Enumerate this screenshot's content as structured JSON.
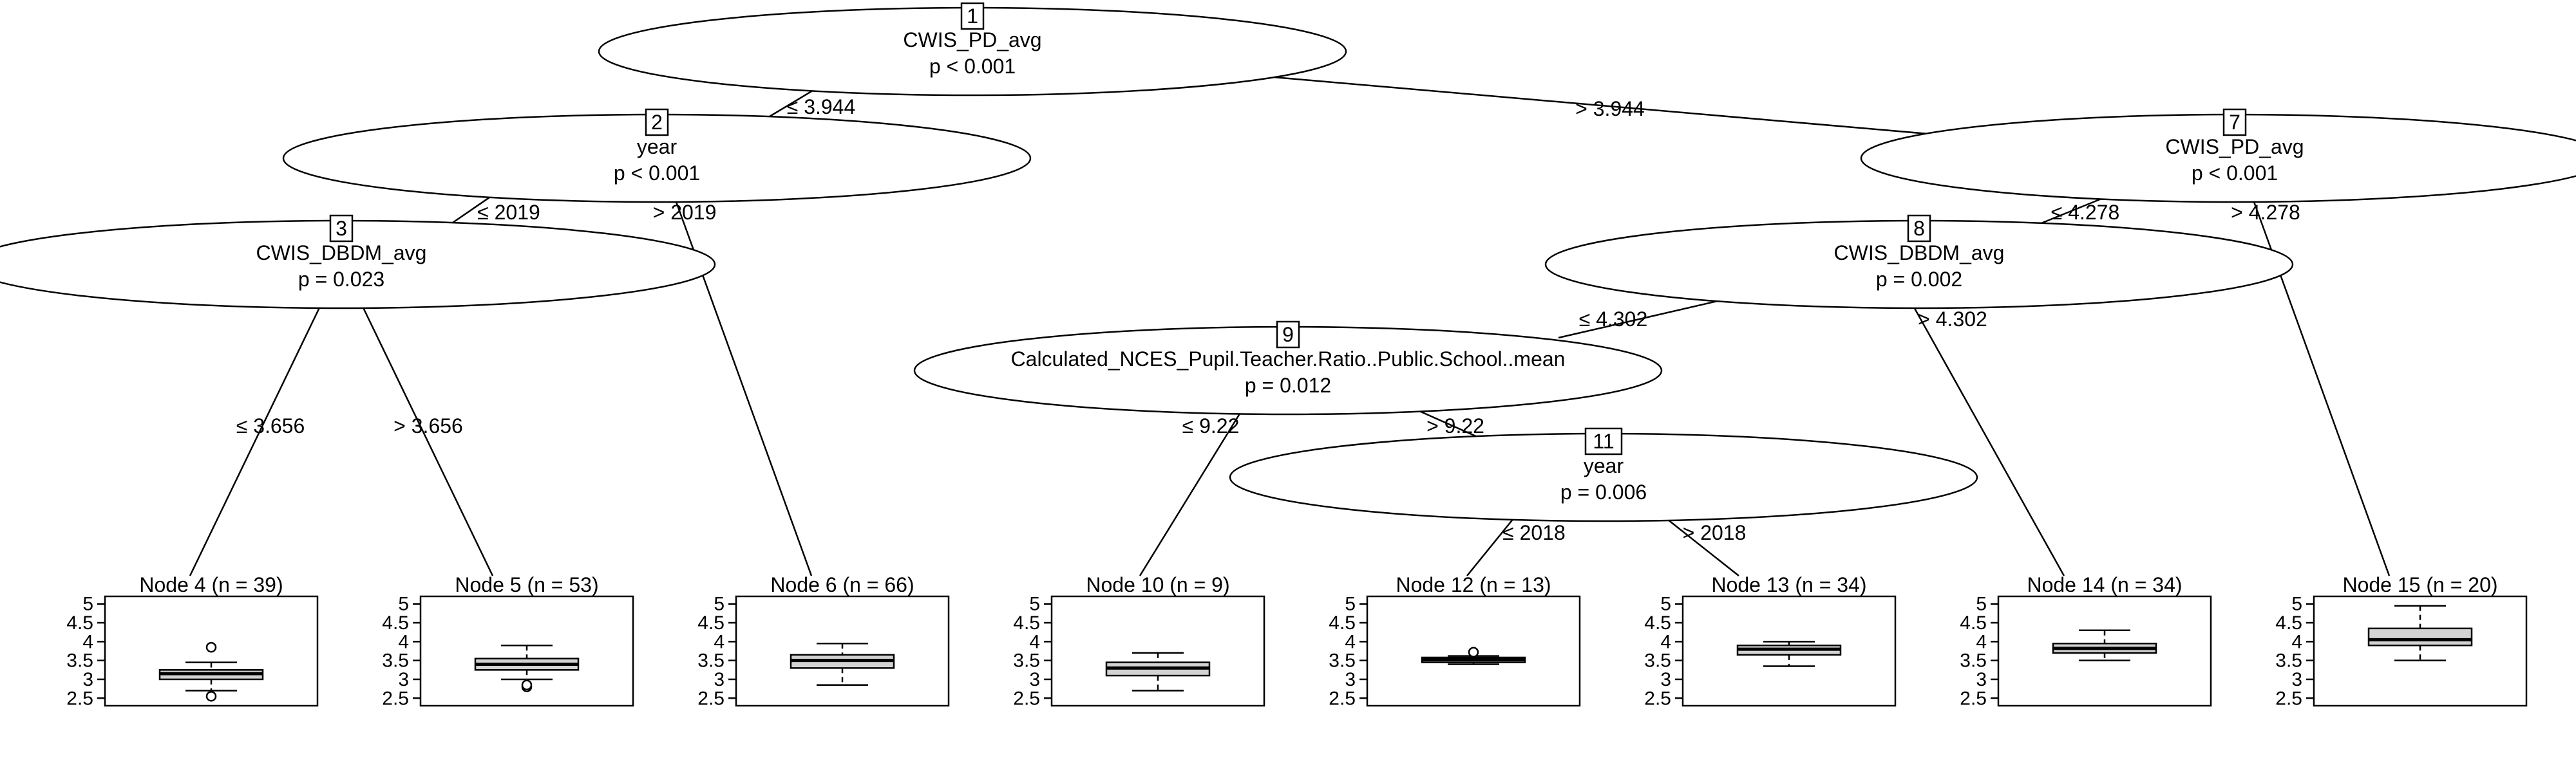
{
  "y_axis": {
    "ticks": [
      "5",
      "4.5",
      "4",
      "3.5",
      "3",
      "2.5"
    ],
    "range": [
      2.3,
      5.2
    ]
  },
  "inner_nodes": [
    {
      "id": "1",
      "variable": "CWIS_PD_avg",
      "pvalue": "p < 0.001"
    },
    {
      "id": "2",
      "variable": "year",
      "pvalue": "p < 0.001"
    },
    {
      "id": "3",
      "variable": "CWIS_DBDM_avg",
      "pvalue": "p = 0.023"
    },
    {
      "id": "7",
      "variable": "CWIS_PD_avg",
      "pvalue": "p < 0.001"
    },
    {
      "id": "8",
      "variable": "CWIS_DBDM_avg",
      "pvalue": "p = 0.002"
    },
    {
      "id": "9",
      "variable": "Calculated_NCES_Pupil.Teacher.Ratio..Public.School..mean",
      "pvalue": "p = 0.012"
    },
    {
      "id": "11",
      "variable": "year",
      "pvalue": "p = 0.006"
    }
  ],
  "edges": [
    {
      "from": "1",
      "to": "2",
      "label": "≤ 3.944"
    },
    {
      "from": "1",
      "to": "7",
      "label": "> 3.944"
    },
    {
      "from": "2",
      "to": "3",
      "label": "≤ 2019"
    },
    {
      "from": "2",
      "to": "6",
      "label": "> 2019"
    },
    {
      "from": "3",
      "to": "4",
      "label": "≤ 3.656"
    },
    {
      "from": "3",
      "to": "5",
      "label": "> 3.656"
    },
    {
      "from": "7",
      "to": "8",
      "label": "≤ 4.278"
    },
    {
      "from": "7",
      "to": "15",
      "label": "> 4.278"
    },
    {
      "from": "8",
      "to": "9",
      "label": "≤ 4.302"
    },
    {
      "from": "8",
      "to": "14",
      "label": "> 4.302"
    },
    {
      "from": "9",
      "to": "10",
      "label": "≤ 9.22"
    },
    {
      "from": "9",
      "to": "11",
      "label": "> 9.22"
    },
    {
      "from": "11",
      "to": "12",
      "label": "≤ 2018"
    },
    {
      "from": "11",
      "to": "13",
      "label": "> 2018"
    }
  ],
  "terminal_nodes": [
    {
      "id": "4",
      "title": "Node 4 (n = 39)",
      "stats": {
        "min": 2.7,
        "q1": 3.0,
        "median": 3.15,
        "q3": 3.25,
        "max": 3.45,
        "outliers": [
          3.85,
          2.55
        ]
      }
    },
    {
      "id": "5",
      "title": "Node 5 (n = 53)",
      "stats": {
        "min": 3.0,
        "q1": 3.25,
        "median": 3.4,
        "q3": 3.55,
        "max": 3.9,
        "outliers": [
          2.8,
          2.85
        ]
      }
    },
    {
      "id": "6",
      "title": "Node 6 (n = 66)",
      "stats": {
        "min": 2.85,
        "q1": 3.3,
        "median": 3.5,
        "q3": 3.65,
        "max": 3.95,
        "outliers": []
      }
    },
    {
      "id": "10",
      "title": "Node 10 (n = 9)",
      "stats": {
        "min": 2.7,
        "q1": 3.1,
        "median": 3.3,
        "q3": 3.45,
        "max": 3.7,
        "outliers": []
      }
    },
    {
      "id": "12",
      "title": "Node 12 (n = 13)",
      "stats": {
        "min": 3.4,
        "q1": 3.45,
        "median": 3.52,
        "q3": 3.58,
        "max": 3.62,
        "outliers": [
          3.72
        ]
      }
    },
    {
      "id": "13",
      "title": "Node 13 (n = 34)",
      "stats": {
        "min": 3.35,
        "q1": 3.65,
        "median": 3.8,
        "q3": 3.9,
        "max": 4.0,
        "outliers": []
      }
    },
    {
      "id": "14",
      "title": "Node 14 (n = 34)",
      "stats": {
        "min": 3.5,
        "q1": 3.7,
        "median": 3.82,
        "q3": 3.95,
        "max": 4.3,
        "outliers": []
      }
    },
    {
      "id": "15",
      "title": "Node 15 (n = 20)",
      "stats": {
        "min": 3.5,
        "q1": 3.9,
        "median": 4.05,
        "q3": 4.35,
        "max": 4.95,
        "outliers": []
      }
    }
  ]
}
